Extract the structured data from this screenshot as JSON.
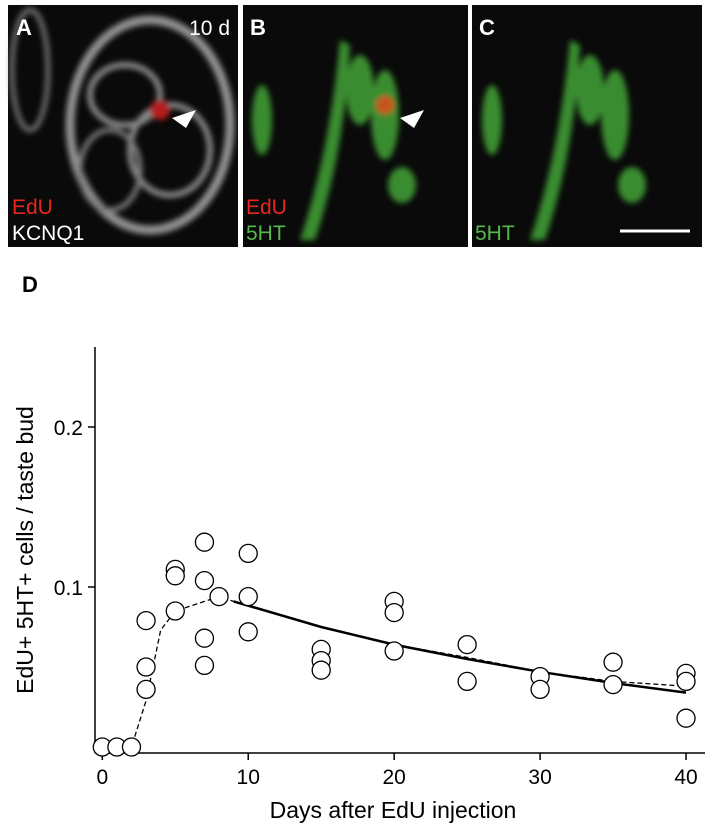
{
  "panels": [
    {
      "label": "A",
      "corner": "10 d",
      "lines": [
        {
          "text": "EdU",
          "color": "#e8261e"
        },
        {
          "text": "KCNQ1",
          "color": "#ffffff"
        }
      ]
    },
    {
      "label": "B",
      "lines": [
        {
          "text": "EdU",
          "color": "#e8261e"
        },
        {
          "text": "5HT",
          "color": "#56b84a"
        }
      ]
    },
    {
      "label": "C",
      "lines": [
        {
          "text": "5HT",
          "color": "#56b84a"
        }
      ]
    }
  ],
  "chart_data": {
    "type": "scatter",
    "label": "D",
    "x_label": "Days after EdU injection",
    "y_label": "EdU+ 5HT+ cells / taste bud",
    "x": [
      0,
      1,
      2,
      3,
      3,
      3,
      5,
      5,
      5,
      7,
      7,
      7,
      7,
      8,
      10,
      10,
      10,
      15,
      15,
      15,
      20,
      20,
      20,
      25,
      25,
      30,
      30,
      35,
      35,
      40,
      40,
      40
    ],
    "values": [
      0,
      0,
      0,
      0.079,
      0.05,
      0.036,
      0.111,
      0.107,
      0.085,
      0.128,
      0.104,
      0.068,
      0.051,
      0.094,
      0.121,
      0.094,
      0.072,
      0.061,
      0.054,
      0.048,
      0.091,
      0.084,
      0.06,
      0.064,
      0.041,
      0.044,
      0.036,
      0.053,
      0.039,
      0.046,
      0.041,
      0.018
    ],
    "fits": [
      {
        "dash": true,
        "x": [
          0,
          2,
          3,
          4,
          5,
          7,
          8,
          9,
          15,
          20,
          25,
          30,
          35,
          40
        ],
        "values": [
          0,
          0,
          0.029,
          0.073,
          0.085,
          0.091,
          0.094,
          0.091,
          0.075,
          0.064,
          0.056,
          0.047,
          0.041,
          0.038
        ]
      },
      {
        "dash": false,
        "x": [
          9,
          15,
          20,
          25,
          30,
          35,
          40
        ],
        "values": [
          0.091,
          0.075,
          0.064,
          0.055,
          0.047,
          0.04,
          0.034
        ]
      }
    ],
    "color": "#000000",
    "xlim": [
      -0.5,
      41.3
    ],
    "ylim": [
      0,
      0.25
    ],
    "xticks": [
      0,
      10,
      20,
      30,
      40
    ],
    "yticks": [
      0.1,
      0.2
    ]
  }
}
